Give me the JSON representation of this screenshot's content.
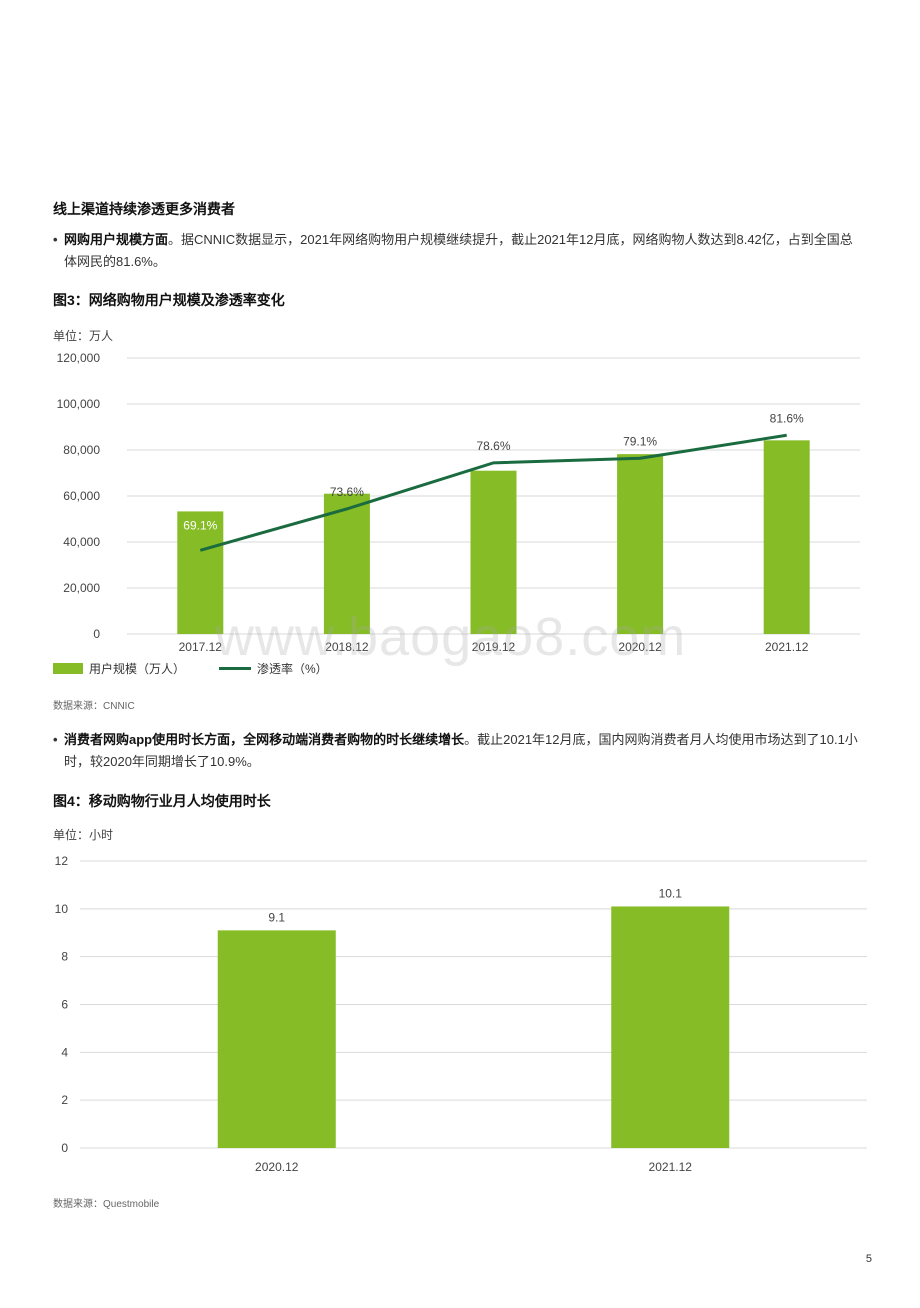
{
  "section_title": "线上渠道持续渗透更多消费者",
  "bullet1": {
    "bold": "网购用户规模方面",
    "text": "。据CNNIC数据显示，2021年网络购物用户规模继续提升，截止2021年12月底，网络购物人数达到8.42亿，占到全国总体网民的81.6%。"
  },
  "fig3": {
    "title": "图3：网络购物用户规模及渗透率变化",
    "unit": "单位：万人",
    "legend": {
      "bar": "用户规模（万人）",
      "line": "渗透率（%）"
    },
    "source": "数据来源：CNNIC"
  },
  "bullet2": {
    "bold": "消费者网购app使用时长方面，全网移动端消费者购物的时长继续增长",
    "text": "。截止2021年12月底，国内网购消费者月人均使用市场达到了10.1小时，较2020年同期增长了10.9%。"
  },
  "fig4": {
    "title": "图4：移动购物行业月人均使用时长",
    "unit": "单位：小时",
    "source": "数据来源：Questmobile"
  },
  "watermark": "www.baogao8.com",
  "page_number": "5",
  "colors": {
    "bar": "#86bc25",
    "line": "#1a6b3f",
    "grid": "#d9d9d9"
  },
  "chart_data": [
    {
      "type": "bar",
      "categories": [
        "2017.12",
        "2018.12",
        "2019.12",
        "2020.12",
        "2021.12"
      ],
      "series": [
        {
          "name": "用户规模（万人）",
          "type": "bar",
          "values": [
            53300,
            61000,
            71000,
            78200,
            84200
          ]
        },
        {
          "name": "渗透率（%）",
          "type": "line",
          "values": [
            69.1,
            73.6,
            78.6,
            79.1,
            81.6
          ],
          "labels": [
            "69.1%",
            "73.6%",
            "78.6%",
            "79.1%",
            "81.6%"
          ]
        }
      ],
      "yticks": [
        "0",
        "20,000",
        "40,000",
        "60,000",
        "80,000",
        "100,000",
        "120,000"
      ],
      "ylim": [
        0,
        120000
      ],
      "y2lim": [
        60,
        90
      ],
      "grid": true,
      "legend": "bottom-left"
    },
    {
      "type": "bar",
      "categories": [
        "2020.12",
        "2021.12"
      ],
      "values": [
        9.1,
        10.1
      ],
      "labels": [
        "9.1",
        "10.1"
      ],
      "yticks": [
        "0",
        "2",
        "4",
        "6",
        "8",
        "10",
        "12"
      ],
      "ylim": [
        0,
        12
      ],
      "grid": true
    }
  ]
}
